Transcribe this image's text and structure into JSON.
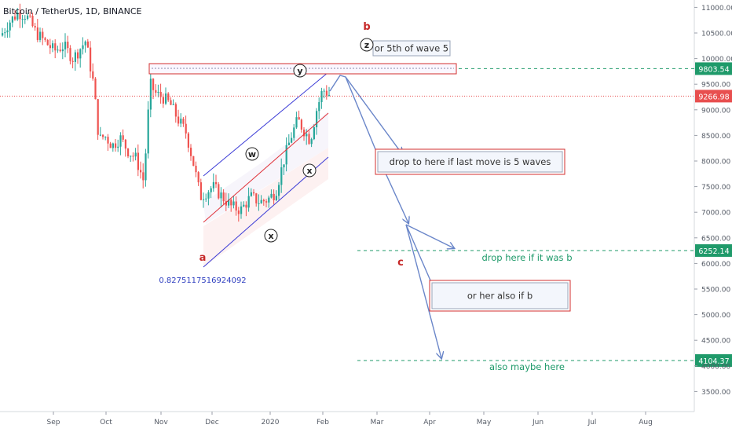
{
  "symbol_title": "Bitcoin / TetherUS, 1D, BINANCE",
  "colors": {
    "up": "#26a69a",
    "down": "#ef5350",
    "channel_outer": "#3b3bd6",
    "channel_mid": "#e0323a",
    "arrows": "#6a86c9",
    "hline": "#1f9a6a",
    "price_line": "#e84f4f",
    "box_border": "#d32f2f",
    "label_red": "#c62828",
    "value_blue": "#3040c0"
  },
  "chart_data": {
    "type": "candlestick",
    "y_axis": {
      "ticks": [
        "11000.00",
        "10500.00",
        "10000.00",
        "9500.00",
        "9000.00",
        "8500.00",
        "8000.00",
        "7500.00",
        "7000.00",
        "6500.00",
        "6000.00",
        "5500.00",
        "5000.00",
        "4500.00",
        "4000.00",
        "3500.00"
      ],
      "ylim": [
        3000,
        11300
      ]
    },
    "x_axis": {
      "ticks": [
        "Sep",
        "Oct",
        "Nov",
        "Dec",
        "2020",
        "Feb",
        "Mar",
        "Apr",
        "May",
        "Jun",
        "Jul",
        "Aug"
      ]
    },
    "current_price": "9266.98",
    "price_levels": [
      {
        "value": 9803.54,
        "label": "9803.54",
        "color": "#1f9a6a"
      },
      {
        "value": 6252.14,
        "label": "6252.14",
        "color": "#1f9a6a"
      },
      {
        "value": 4104.37,
        "label": "4104.37",
        "color": "#1f9a6a"
      }
    ],
    "annotations": {
      "wave_a": "a",
      "wave_b": "b",
      "wave_c": "c",
      "wave_z": "z",
      "wave_y": "y",
      "wave_w": "w",
      "wave_x1": "x",
      "wave_x2": "x",
      "ratio_value": "0.8275117516924092",
      "box_5th": "or 5th of wave 5",
      "box_drop": "drop to here if last move is 5 waves",
      "text_drop_b": "drop here if it was b",
      "box_or_her": "or her also if b",
      "text_maybe": "also maybe here"
    }
  }
}
